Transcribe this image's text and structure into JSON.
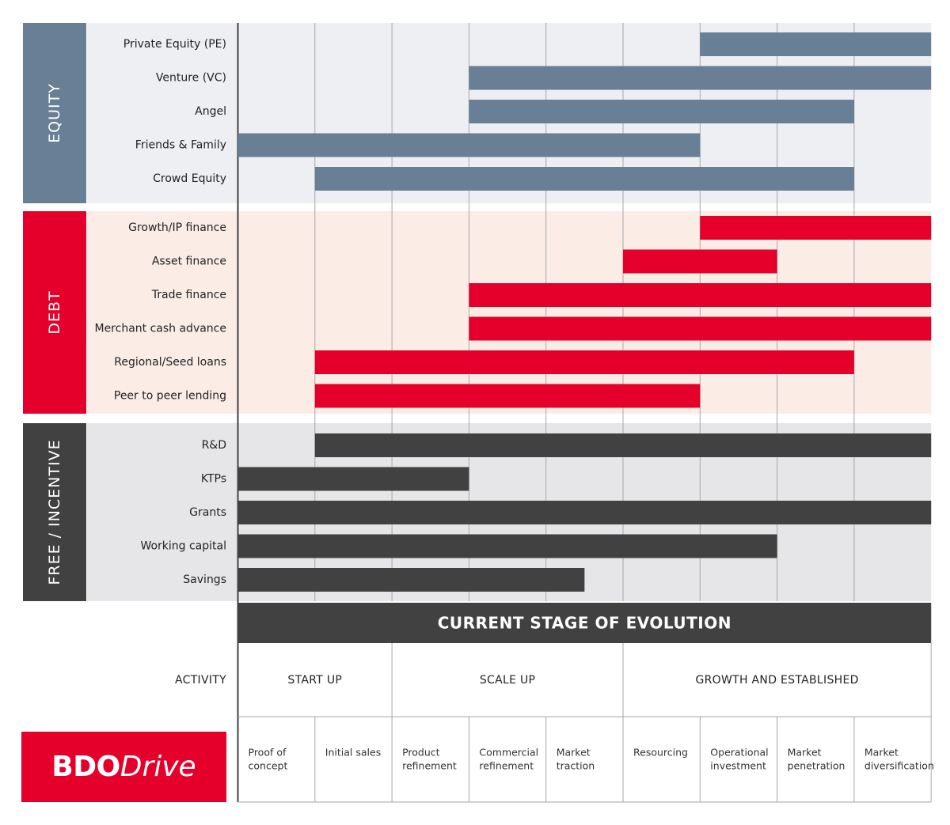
{
  "chart_data": {
    "type": "bar",
    "subtype": "gantt",
    "title": "CURRENT STAGE OF EVOLUTION",
    "activity_label": "ACTIVITY",
    "phases": [
      {
        "label": "START UP",
        "from": 0,
        "to": 2
      },
      {
        "label": "SCALE UP",
        "from": 2,
        "to": 5
      },
      {
        "label": "GROWTH AND ESTABLISHED",
        "from": 5,
        "to": 9
      }
    ],
    "stages": [
      [
        "Proof of",
        "concept"
      ],
      [
        "Initial sales"
      ],
      [
        "Product",
        "refinement"
      ],
      [
        "Commercial",
        "refinement"
      ],
      [
        "Market",
        "traction"
      ],
      [
        "Resourcing"
      ],
      [
        "Operational",
        "investment"
      ],
      [
        "Market",
        "penetration"
      ],
      [
        "Market",
        "diversification"
      ]
    ],
    "groups": [
      {
        "name": "EQUITY",
        "color": "#687f96",
        "band": "#eeeff3",
        "rows": [
          {
            "label": "Private Equity (PE)",
            "start": 6,
            "end": 9
          },
          {
            "label": "Venture (VC)",
            "start": 3,
            "end": 9
          },
          {
            "label": "Angel",
            "start": 3,
            "end": 8
          },
          {
            "label": "Friends & Family",
            "start": 0,
            "end": 6
          },
          {
            "label": "Crowd Equity",
            "start": 1,
            "end": 8
          }
        ]
      },
      {
        "name": "DEBT",
        "color": "#e4002b",
        "band": "#fbece6",
        "rows": [
          {
            "label": "Growth/IP finance",
            "start": 6,
            "end": 9
          },
          {
            "label": "Asset finance",
            "start": 5,
            "end": 7
          },
          {
            "label": "Trade finance",
            "start": 3,
            "end": 9
          },
          {
            "label": "Merchant cash advance",
            "start": 3,
            "end": 9
          },
          {
            "label": "Regional/Seed loans",
            "start": 1,
            "end": 8
          },
          {
            "label": "Peer to peer lending",
            "start": 1,
            "end": 6
          }
        ]
      },
      {
        "name": "FREE / INCENTIVE",
        "color": "#414142",
        "band": "#e6e6e8",
        "rows": [
          {
            "label": "R&D",
            "start": 1,
            "end": 9
          },
          {
            "label": "KTPs",
            "start": 0,
            "end": 3
          },
          {
            "label": "Grants",
            "start": 0,
            "end": 9
          },
          {
            "label": "Working capital",
            "start": 0,
            "end": 7
          },
          {
            "label": "Savings",
            "start": 0,
            "end": 4.5
          }
        ]
      }
    ]
  },
  "logo": {
    "bold": "BDO",
    "italic": "Drive"
  },
  "colors": {
    "dark": "#414142",
    "grid": "#a7a7ab"
  }
}
